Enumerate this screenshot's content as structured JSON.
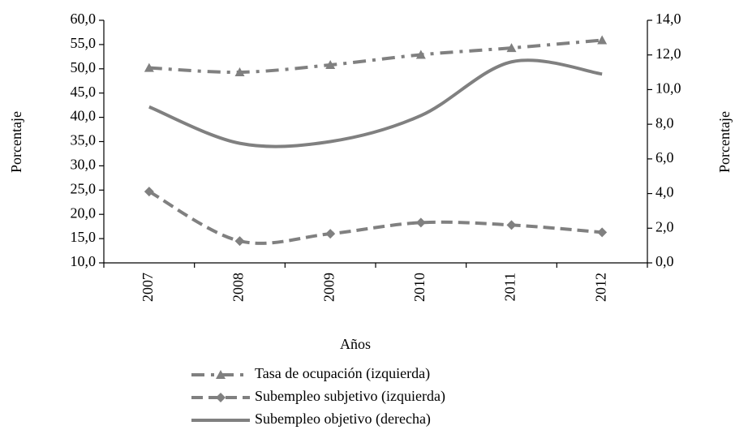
{
  "chart_data": {
    "type": "line",
    "x_label": "Años",
    "y_label": "Porcentaje",
    "y2_label": "Porcentaje",
    "categories": [
      "2007",
      "2008",
      "2009",
      "2010",
      "2011",
      "2012"
    ],
    "ylim": [
      10,
      60
    ],
    "yticks": [
      {
        "value": 10,
        "label": "10,0"
      },
      {
        "value": 15,
        "label": "15,0"
      },
      {
        "value": 20,
        "label": "20,0"
      },
      {
        "value": 25,
        "label": "25,0"
      },
      {
        "value": 30,
        "label": "30,0"
      },
      {
        "value": 35,
        "label": "35,0"
      },
      {
        "value": 40,
        "label": "40,0"
      },
      {
        "value": 45,
        "label": "45,0"
      },
      {
        "value": 50,
        "label": "50,0"
      },
      {
        "value": 55,
        "label": "55,0"
      },
      {
        "value": 60,
        "label": "60,0"
      }
    ],
    "y2lim": [
      0,
      14
    ],
    "y2ticks": [
      {
        "value": 0,
        "label": "0,0"
      },
      {
        "value": 2,
        "label": "2,0"
      },
      {
        "value": 4,
        "label": "4,0"
      },
      {
        "value": 6,
        "label": "6,0"
      },
      {
        "value": 8,
        "label": "8,0"
      },
      {
        "value": 10,
        "label": "10,0"
      },
      {
        "value": 12,
        "label": "12,0"
      },
      {
        "value": 14,
        "label": "14,0"
      }
    ],
    "series": [
      {
        "name": "Tasa de ocupación (izquierda)",
        "color": "#808080",
        "dash": "dashdot",
        "marker": "triangle",
        "values": [
          50.2,
          49.3,
          50.8,
          52.9,
          54.3,
          55.9
        ]
      },
      {
        "name": "Subempleo subjetivo (izquierda)",
        "color": "#808080",
        "dash": "dashed",
        "marker": "diamond",
        "values": [
          24.7,
          14.5,
          16.0,
          18.3,
          17.8,
          16.3
        ]
      },
      {
        "name": "Subempleo objetivo (derecha)",
        "color": "#808080",
        "dash": "solid",
        "axis": "y2",
        "values": [
          9.0,
          6.9,
          7.0,
          8.5,
          11.6,
          10.9
        ]
      }
    ]
  }
}
